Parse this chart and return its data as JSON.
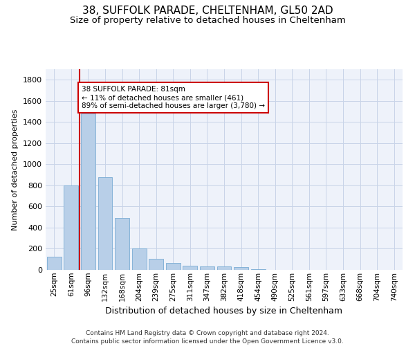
{
  "title1": "38, SUFFOLK PARADE, CHELTENHAM, GL50 2AD",
  "title2": "Size of property relative to detached houses in Cheltenham",
  "xlabel": "Distribution of detached houses by size in Cheltenham",
  "ylabel": "Number of detached properties",
  "footnote1": "Contains HM Land Registry data © Crown copyright and database right 2024.",
  "footnote2": "Contains public sector information licensed under the Open Government Licence v3.0.",
  "categories": [
    "25sqm",
    "61sqm",
    "96sqm",
    "132sqm",
    "168sqm",
    "204sqm",
    "239sqm",
    "275sqm",
    "311sqm",
    "347sqm",
    "382sqm",
    "418sqm",
    "454sqm",
    "490sqm",
    "525sqm",
    "561sqm",
    "597sqm",
    "633sqm",
    "668sqm",
    "704sqm",
    "740sqm"
  ],
  "values": [
    125,
    800,
    1480,
    880,
    490,
    205,
    105,
    65,
    40,
    35,
    30,
    25,
    5,
    0,
    0,
    0,
    0,
    0,
    0,
    0,
    0
  ],
  "bar_color": "#b8cfe8",
  "bar_edge_color": "#7aacd4",
  "grid_color": "#c8d4e8",
  "vline_x": 1.5,
  "vline_color": "#cc0000",
  "annotation_text": "38 SUFFOLK PARADE: 81sqm\n← 11% of detached houses are smaller (461)\n89% of semi-detached houses are larger (3,780) →",
  "annotation_box_color": "#cc0000",
  "ylim": [
    0,
    1900
  ],
  "yticks": [
    0,
    200,
    400,
    600,
    800,
    1000,
    1200,
    1400,
    1600,
    1800
  ],
  "bg_color": "#eef2fa",
  "title1_fontsize": 11,
  "title2_fontsize": 9.5
}
